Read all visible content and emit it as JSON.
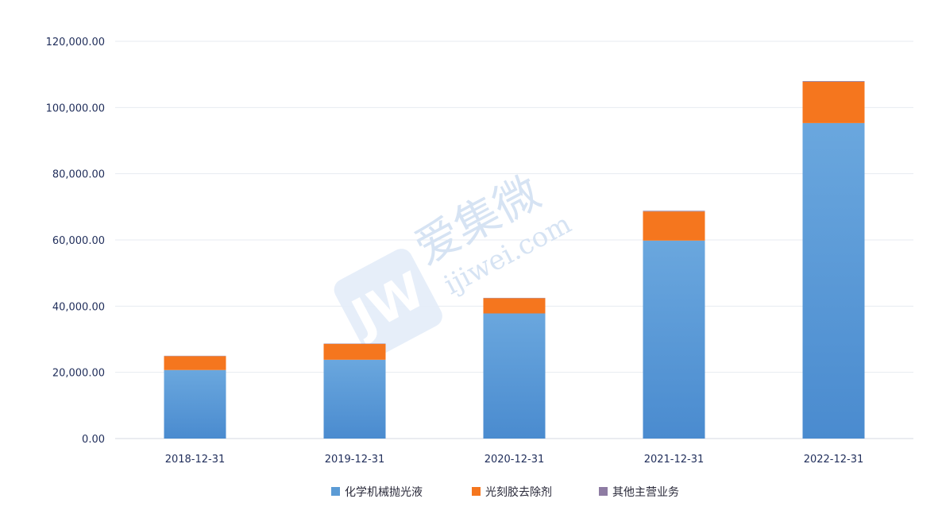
{
  "chart_data": {
    "type": "bar",
    "stacked": true,
    "categories": [
      "2018-12-31",
      "2019-12-31",
      "2020-12-31",
      "2021-12-31",
      "2022-12-31"
    ],
    "series": [
      {
        "name": "化学机械抛光液",
        "color": "#5b9bd5",
        "values": [
          20700,
          23800,
          37800,
          59800,
          95300
        ]
      },
      {
        "name": "光刻胶去除剂",
        "color": "#f5761e",
        "values": [
          4200,
          4800,
          4600,
          8800,
          12500
        ]
      },
      {
        "name": "其他主营业务",
        "color": "#8e7ca3",
        "values": [
          100,
          100,
          100,
          200,
          200
        ]
      }
    ],
    "ylim": [
      0,
      120000
    ],
    "yticks": [
      0,
      20000,
      40000,
      60000,
      80000,
      100000,
      120000
    ],
    "ytick_labels": [
      "0.00",
      "20,000.00",
      "40,000.00",
      "60,000.00",
      "80,000.00",
      "100,000.00",
      "120,000.00"
    ],
    "grid": true,
    "legend_position": "bottom"
  },
  "watermark": {
    "cn": "爱集微",
    "en": "ijiwei.com"
  }
}
